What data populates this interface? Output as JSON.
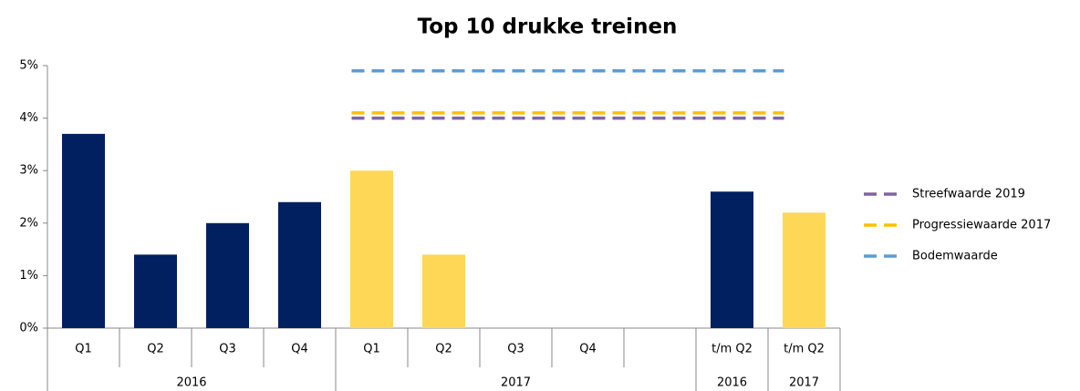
{
  "chart_data": {
    "type": "bar",
    "title": "Top 10 drukke treinen",
    "categories": [
      "Q1",
      "Q2",
      "Q3",
      "Q4",
      "Q1",
      "Q2",
      "Q3",
      "Q4",
      null,
      "t/m Q2",
      "t/m Q2"
    ],
    "groups": [
      {
        "label": "2016",
        "count": 4
      },
      {
        "label": "2017",
        "count": 5
      },
      {
        "label": "2016",
        "count": 1
      },
      {
        "label": "2017",
        "count": 1
      }
    ],
    "values": [
      3.7,
      1.4,
      2.0,
      2.4,
      3.0,
      1.4,
      null,
      null,
      null,
      2.6,
      2.2
    ],
    "colors": [
      "#002060",
      "#002060",
      "#002060",
      "#002060",
      "#ffd757",
      "#ffd757",
      "#ffd757",
      "#ffd757",
      "#ffd757",
      "#002060",
      "#ffd757"
    ],
    "series": [
      {
        "name": "Streefwaarde 2019",
        "color": "#8064a2",
        "values": [
          null,
          null,
          null,
          null,
          4.0,
          4.0,
          4.0,
          4.0,
          4.0,
          4.0,
          4.0
        ]
      },
      {
        "name": "Progressiewaarde 2017",
        "color": "#ffc000",
        "values": [
          null,
          null,
          null,
          null,
          4.1,
          4.1,
          4.1,
          4.1,
          4.1,
          4.1,
          4.1
        ]
      },
      {
        "name": "Bodemwaarde",
        "color": "#5b9bd5",
        "values": [
          null,
          null,
          null,
          null,
          4.9,
          4.9,
          4.9,
          4.9,
          4.9,
          4.9,
          4.9
        ]
      }
    ],
    "ylim": [
      0,
      5
    ],
    "yticks": [
      {
        "value": 0,
        "label": "0%"
      },
      {
        "value": 1,
        "label": "1%"
      },
      {
        "value": 2,
        "label": "2%"
      },
      {
        "value": 3,
        "label": "3%"
      },
      {
        "value": 4,
        "label": "4%"
      },
      {
        "value": 5,
        "label": "5%"
      }
    ],
    "legend": "right"
  }
}
